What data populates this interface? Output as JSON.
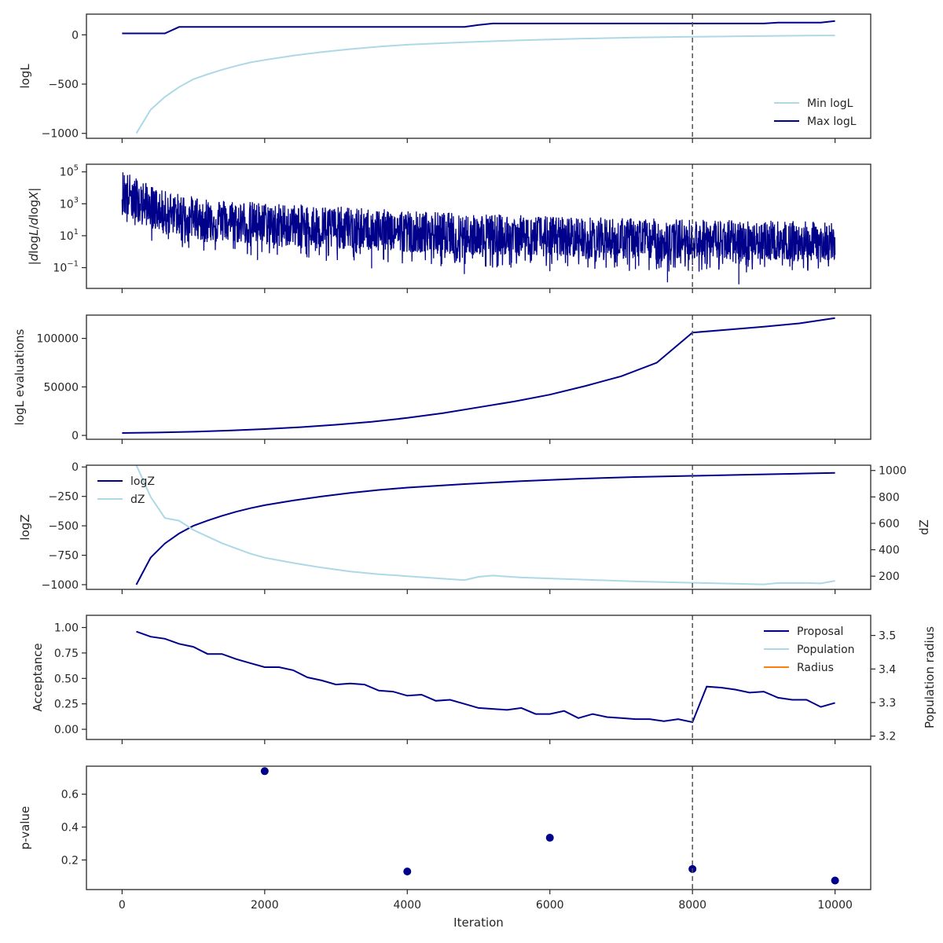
{
  "colors": {
    "dark": "#00008b",
    "light": "#add8e6",
    "orange": "#ff7f0e",
    "axis": "#262626",
    "vline": "#555555"
  },
  "chart_data": [
    {
      "type": "line",
      "ylabel": "logL",
      "xlim": [
        -500,
        10500
      ],
      "ylim": [
        -1050,
        210
      ],
      "yticks": [
        -1000,
        -500,
        0
      ],
      "ytick_labels": [
        "−1000",
        "−500",
        "0"
      ],
      "vline_x": 8000,
      "legend_position": "lower-right",
      "series": [
        {
          "name": "Min logL",
          "color": "light",
          "x": [
            200,
            400,
            600,
            800,
            1000,
            1200,
            1400,
            1600,
            1800,
            2000,
            2400,
            2800,
            3200,
            3600,
            4000,
            4800,
            5600,
            6400,
            7200,
            8000,
            8800,
            9600,
            10000
          ],
          "y": [
            -1000,
            -760,
            -630,
            -530,
            -450,
            -400,
            -355,
            -315,
            -280,
            -255,
            -210,
            -175,
            -145,
            -120,
            -100,
            -75,
            -55,
            -40,
            -28,
            -20,
            -13,
            -8,
            -6
          ]
        },
        {
          "name": "Max logL",
          "color": "dark",
          "x": [
            0,
            600,
            800,
            4800,
            5000,
            5200,
            9000,
            9200,
            9800,
            10000
          ],
          "y": [
            15,
            15,
            80,
            80,
            100,
            115,
            115,
            125,
            125,
            140
          ]
        }
      ]
    },
    {
      "type": "line",
      "ylabel": "|dlogL/dlogX|",
      "yscale": "log",
      "xlim": [
        -500,
        10500
      ],
      "ylim": [
        0.005,
        300000
      ],
      "yticks": [
        0.1,
        10,
        1000,
        100000
      ],
      "ytick_labels": [
        "10^-1",
        "10^1",
        "10^3",
        "10^5"
      ],
      "vline_x": 8000,
      "series": [
        {
          "name": "",
          "color": "dark",
          "x": [
            0,
            500,
            1000,
            1500,
            2000,
            2500,
            3000,
            3500,
            4000,
            4500,
            5000,
            5500,
            6000,
            6500,
            7000,
            7500,
            8000,
            8500,
            9000,
            9500,
            10000
          ],
          "y_upper": [
            150000,
            8000,
            3000,
            1800,
            1200,
            900,
            700,
            500,
            400,
            300,
            250,
            200,
            170,
            150,
            130,
            120,
            110,
            100,
            90,
            80,
            70
          ],
          "y_lower": [
            30,
            3,
            1,
            0.6,
            0.4,
            0.3,
            0.25,
            0.2,
            0.15,
            0.12,
            0.1,
            0.1,
            0.08,
            0.08,
            0.06,
            0.05,
            0.05,
            0.05,
            0.05,
            0.05,
            0.05
          ],
          "y_median": [
            5000,
            500,
            150,
            80,
            60,
            40,
            30,
            25,
            20,
            15,
            12,
            10,
            8,
            7,
            6,
            5,
            5,
            4,
            4,
            4,
            4
          ],
          "spikes_low": [
            [
              1900,
              0.3
            ],
            [
              3500,
              0.09
            ],
            [
              4800,
              0.04
            ],
            [
              6000,
              0.06
            ],
            [
              7200,
              0.08
            ],
            [
              7650,
              0.012
            ],
            [
              8200,
              0.08
            ],
            [
              8650,
              0.009
            ],
            [
              9400,
              0.07
            ]
          ]
        }
      ]
    },
    {
      "type": "line",
      "ylabel": "logL evaluations",
      "xlim": [
        -500,
        10500
      ],
      "ylim": [
        -4000,
        124000
      ],
      "yticks": [
        0,
        50000,
        100000
      ],
      "ytick_labels": [
        "0",
        "50000",
        "100000"
      ],
      "vline_x": 8000,
      "series": [
        {
          "name": "",
          "color": "dark",
          "x": [
            0,
            500,
            1000,
            1500,
            2000,
            2500,
            3000,
            3500,
            4000,
            4500,
            5000,
            5500,
            6000,
            6500,
            7000,
            7500,
            8000,
            8500,
            9000,
            9500,
            10000
          ],
          "y": [
            2500,
            3000,
            3800,
            5000,
            6500,
            8500,
            11000,
            14000,
            18000,
            23000,
            29000,
            35000,
            42000,
            51000,
            61000,
            75000,
            106000,
            109000,
            112000,
            115500,
            121000
          ]
        }
      ]
    },
    {
      "type": "line",
      "ylabel": "logZ",
      "ylabel_right": "dZ",
      "xlim": [
        -500,
        10500
      ],
      "ylim": [
        -1040,
        15
      ],
      "yticks": [
        -1000,
        -750,
        -500,
        -250,
        0
      ],
      "ytick_labels": [
        "−1000",
        "−750",
        "−500",
        "−250",
        "0"
      ],
      "ylim_right": [
        100,
        1040
      ],
      "yticks_right": [
        200,
        400,
        600,
        800,
        1000
      ],
      "ytick_labels_right": [
        "200",
        "400",
        "600",
        "800",
        "1000"
      ],
      "vline_x": 8000,
      "legend_position": "upper-left",
      "series": [
        {
          "name": "logZ",
          "color": "dark",
          "axis": "left",
          "x": [
            200,
            400,
            600,
            800,
            1000,
            1200,
            1400,
            1600,
            1800,
            2000,
            2400,
            2800,
            3200,
            3600,
            4000,
            4800,
            5600,
            6400,
            7200,
            8000,
            8800,
            9600,
            10000
          ],
          "y": [
            -1000,
            -770,
            -650,
            -565,
            -500,
            -455,
            -415,
            -380,
            -350,
            -325,
            -285,
            -250,
            -220,
            -195,
            -175,
            -145,
            -120,
            -100,
            -85,
            -75,
            -65,
            -55,
            -50
          ]
        },
        {
          "name": "dZ",
          "color": "light",
          "axis": "right",
          "x": [
            200,
            400,
            600,
            800,
            1000,
            1200,
            1400,
            1600,
            1800,
            2000,
            2400,
            2800,
            3200,
            3600,
            4000,
            4800,
            5000,
            5200,
            5600,
            6400,
            7200,
            8000,
            8800,
            9000,
            9200,
            9600,
            9800,
            10000
          ],
          "y": [
            1040,
            800,
            640,
            620,
            550,
            500,
            450,
            410,
            370,
            340,
            300,
            265,
            235,
            215,
            200,
            170,
            195,
            205,
            190,
            175,
            160,
            150,
            140,
            138,
            148,
            148,
            145,
            165
          ]
        }
      ]
    },
    {
      "type": "line",
      "ylabel": "Acceptance",
      "ylabel_right": "Population radius",
      "xlim": [
        -500,
        10500
      ],
      "ylim": [
        -0.1,
        1.12
      ],
      "yticks": [
        0.0,
        0.25,
        0.5,
        0.75,
        1.0
      ],
      "ytick_labels": [
        "0.00",
        "0.25",
        "0.50",
        "0.75",
        "1.00"
      ],
      "ylim_right": [
        3.19,
        3.56
      ],
      "yticks_right": [
        3.2,
        3.3,
        3.4,
        3.5
      ],
      "ytick_labels_right": [
        "3.2",
        "3.3",
        "3.4",
        "3.5"
      ],
      "vline_x": 8000,
      "legend_position": "upper-right",
      "series": [
        {
          "name": "Proposal",
          "color": "dark",
          "x": [
            200,
            400,
            600,
            800,
            1000,
            1200,
            1400,
            1600,
            1800,
            2000,
            2200,
            2400,
            2600,
            2800,
            3000,
            3200,
            3400,
            3600,
            3800,
            4000,
            4200,
            4400,
            4600,
            4800,
            5000,
            5200,
            5400,
            5600,
            5800,
            6000,
            6200,
            6400,
            6600,
            6800,
            7000,
            7200,
            7400,
            7600,
            7800,
            8000,
            8200,
            8400,
            8600,
            8800,
            9000,
            9200,
            9400,
            9600,
            9800,
            10000
          ],
          "y": [
            0.96,
            0.91,
            0.89,
            0.84,
            0.81,
            0.74,
            0.74,
            0.69,
            0.65,
            0.61,
            0.61,
            0.58,
            0.51,
            0.48,
            0.44,
            0.45,
            0.44,
            0.38,
            0.37,
            0.33,
            0.34,
            0.28,
            0.29,
            0.25,
            0.21,
            0.2,
            0.19,
            0.21,
            0.15,
            0.15,
            0.18,
            0.11,
            0.15,
            0.12,
            0.11,
            0.1,
            0.1,
            0.08,
            0.1,
            0.07,
            0.42,
            0.41,
            0.39,
            0.36,
            0.37,
            0.31,
            0.29,
            0.29,
            0.22,
            0.26
          ]
        },
        {
          "name": "Population",
          "color": "light",
          "x": [],
          "y": []
        },
        {
          "name": "Radius",
          "color": "orange",
          "x": [],
          "y": []
        }
      ]
    },
    {
      "type": "scatter",
      "ylabel": "p-value",
      "xlabel": "Iteration",
      "xlim": [
        -500,
        10500
      ],
      "ylim": [
        0.02,
        0.77
      ],
      "yticks": [
        0.2,
        0.4,
        0.6
      ],
      "ytick_labels": [
        "0.2",
        "0.4",
        "0.6"
      ],
      "xticks": [
        0,
        2000,
        4000,
        6000,
        8000,
        10000
      ],
      "xtick_labels": [
        "0",
        "2000",
        "4000",
        "6000",
        "8000",
        "10000"
      ],
      "vline_x": 8000,
      "series": [
        {
          "name": "",
          "color": "dark",
          "x": [
            2000,
            4000,
            6000,
            8000,
            10000
          ],
          "y": [
            0.74,
            0.13,
            0.335,
            0.145,
            0.075
          ]
        }
      ]
    }
  ]
}
